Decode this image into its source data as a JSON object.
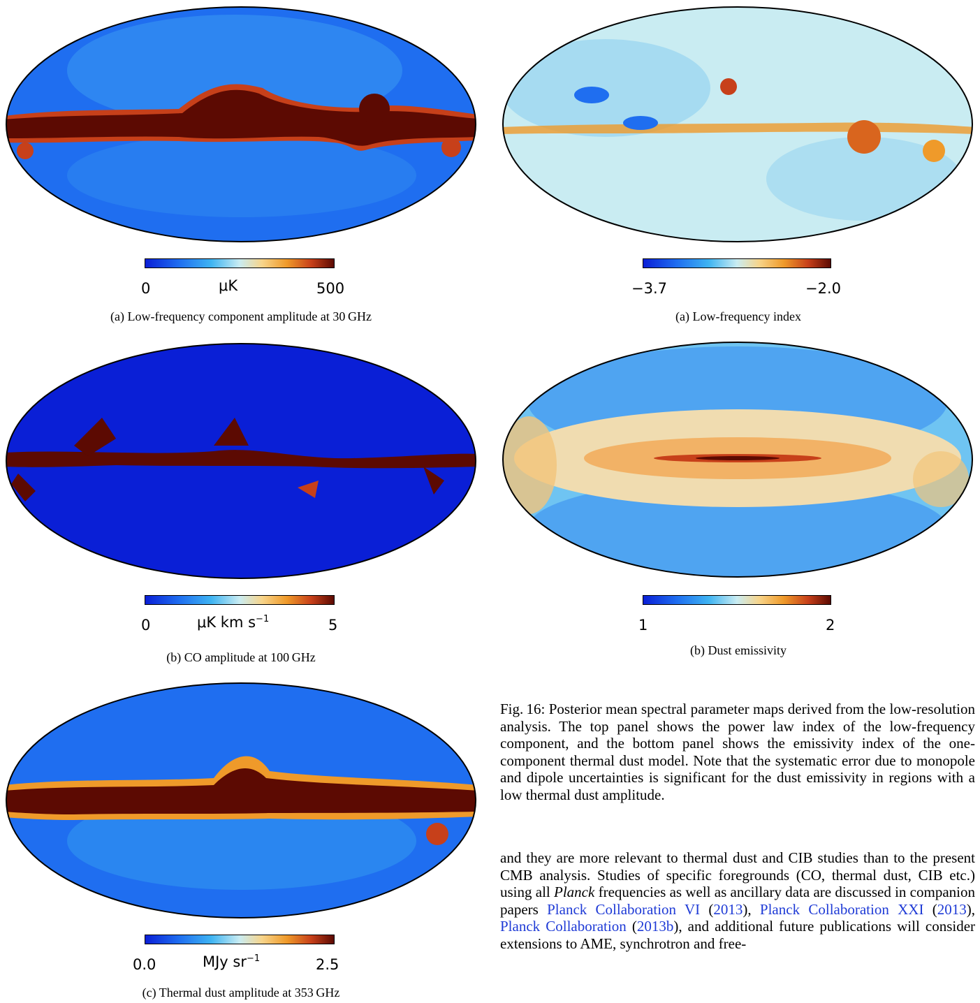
{
  "left": {
    "a": {
      "cb_min": "0",
      "cb_unit": "μK",
      "cb_unit_sup": "",
      "cb_max": "500",
      "caption": "(a) Low-frequency component amplitude at 30 GHz"
    },
    "b": {
      "cb_min": "0",
      "cb_unit": "μK km s",
      "cb_unit_sup": "−1",
      "cb_max": "5",
      "caption": "(b) CO amplitude at 100 GHz"
    },
    "c": {
      "cb_min": "0.0",
      "cb_unit": "MJy sr",
      "cb_unit_sup": "−1",
      "cb_max": "2.5",
      "caption": "(c) Thermal dust amplitude at 353 GHz"
    }
  },
  "right": {
    "a": {
      "cb_min": "−3.7",
      "cb_max": "−2.0",
      "caption": "(a) Low-frequency index"
    },
    "b": {
      "cb_min": "1",
      "cb_max": "2",
      "caption": "(b) Dust emissivity"
    }
  },
  "fig_caption": "Fig. 16: Posterior mean spectral parameter maps derived from the low-resolution analysis. The top panel shows the power law index of the low-frequency component, and the bottom panel shows the emissivity index of the one-component thermal dust model. Note that the systematic error due to monopole and dipole uncertainties is significant for the dust emissivity in regions with a low thermal dust amplitude.",
  "body": {
    "t1": "and they are more relevant to thermal dust and CIB studies than to the present CMB analysis. Studies of specific foregrounds (CO, thermal dust, CIB etc.) using all ",
    "planck": "Planck",
    "t2": " frequencies as well as ancillary data are discussed in companion papers ",
    "ref1": "Planck Collaboration VI",
    "ref1y": "2013",
    "ref2": "Planck Collaboration XXI",
    "ref2y": "2013",
    "ref3": "Planck Collaboration",
    "ref3y": "2013b",
    "t3": ", and additional future publications will consider extensions to AME, synchrotron and free-"
  },
  "colors": {
    "deep_blue": "#0a1fd6",
    "light": "#c9ecf2",
    "dark_red": "#5c0a02"
  }
}
